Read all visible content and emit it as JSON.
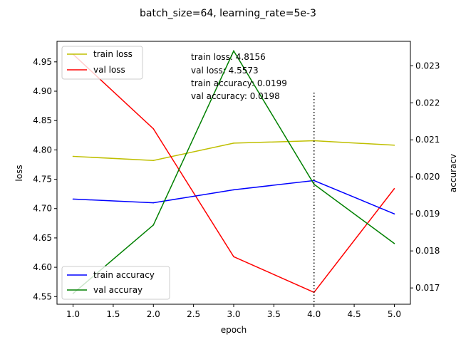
{
  "chart_data": {
    "type": "line",
    "title": "batch_size=64, learning_rate=5e-3",
    "xlabel": "epoch",
    "ylabel_left": "loss",
    "ylabel_right": "accuracy",
    "x": [
      1,
      2,
      3,
      4,
      5
    ],
    "xlim": [
      0.8,
      5.2
    ],
    "ylim_left": [
      4.537,
      4.985
    ],
    "ylim_right": [
      0.01656,
      0.02366
    ],
    "x_ticks": [
      "1.0",
      "1.5",
      "2.0",
      "2.5",
      "3.0",
      "3.5",
      "4.0",
      "4.5",
      "5.0"
    ],
    "y_ticks_left": [
      "4.55",
      "4.60",
      "4.65",
      "4.70",
      "4.75",
      "4.80",
      "4.85",
      "4.90",
      "4.95"
    ],
    "y_ticks_right": [
      "0.017",
      "0.018",
      "0.019",
      "0.020",
      "0.021",
      "0.022",
      "0.023"
    ],
    "loss_series": [
      {
        "name": "train loss",
        "color": "#bfbf00",
        "values": [
          4.789,
          4.782,
          4.8115,
          4.8156,
          4.808
        ]
      },
      {
        "name": "val loss",
        "color": "#ff0000",
        "values": [
          4.963,
          4.836,
          4.618,
          4.5573,
          4.734
        ]
      }
    ],
    "accuracy_series": [
      {
        "name": "train accuracy",
        "color": "#0000ff",
        "values": [
          0.0194,
          0.0193,
          0.01965,
          0.0199,
          0.019
        ]
      },
      {
        "name": "val accuray",
        "color": "#008000",
        "values": [
          0.01685,
          0.0187,
          0.0234,
          0.0198,
          0.0182
        ]
      }
    ],
    "marker_line": {
      "x": 4,
      "style": "dotted",
      "color": "#000000"
    },
    "annotations": [
      "train loss: 4.8156",
      "val loss: 4.5573",
      "train accuracy: 0.0199",
      "val accuracy: 0.0198"
    ],
    "legend_loss_position": "upper-left",
    "legend_accuracy_position": "lower-left",
    "grid": false
  }
}
